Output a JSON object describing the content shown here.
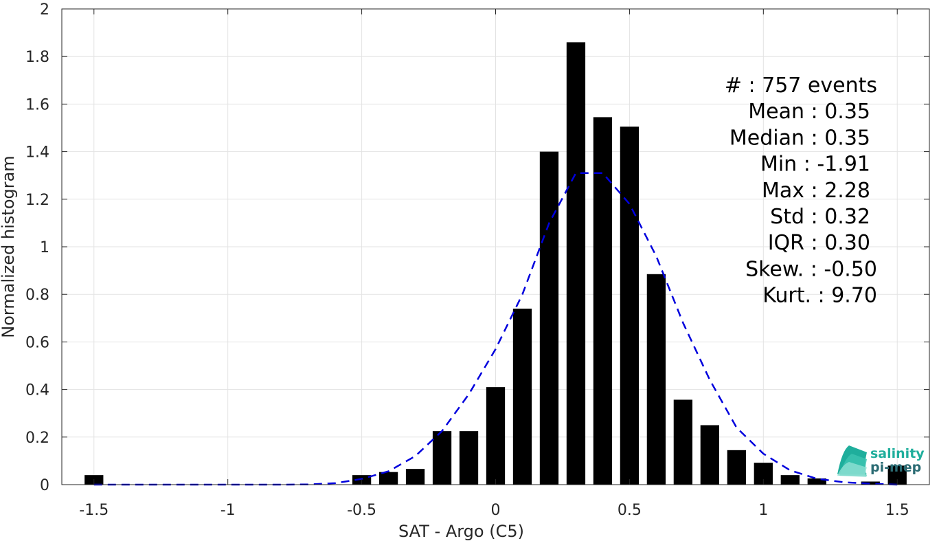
{
  "chart_data": {
    "type": "bar",
    "xlabel": "SAT - Argo (C5)",
    "ylabel": "Normalized histogram",
    "xlim": [
      -1.62,
      1.62
    ],
    "ylim": [
      0,
      2
    ],
    "grid": true,
    "x_ticks": [
      -1.5,
      -1,
      -0.5,
      0,
      0.5,
      1,
      1.5
    ],
    "x_tick_labels": [
      "-1.5",
      "-1",
      "-0.5",
      "0",
      "0.5",
      "1",
      "1.5"
    ],
    "y_ticks": [
      0,
      0.2,
      0.4,
      0.6,
      0.8,
      1,
      1.2,
      1.4,
      1.6,
      1.8,
      2
    ],
    "y_tick_labels": [
      "0",
      "0.2",
      "0.4",
      "0.6",
      "0.8",
      "1",
      "1.2",
      "1.4",
      "1.6",
      "1.8",
      "2"
    ],
    "bin_width": 0.1,
    "bar_width": 0.07,
    "bar_color": "#000000",
    "x": [
      -1.5,
      -0.5,
      -0.4,
      -0.3,
      -0.2,
      -0.1,
      0,
      0.1,
      0.2,
      0.3,
      0.4,
      0.5,
      0.6,
      0.7,
      0.8,
      0.9,
      1.0,
      1.1,
      1.2,
      1.4,
      1.5
    ],
    "values": [
      0.04,
      0.04,
      0.053,
      0.066,
      0.225,
      0.225,
      0.41,
      0.74,
      1.4,
      1.86,
      1.545,
      1.505,
      0.885,
      0.357,
      0.25,
      0.145,
      0.092,
      0.04,
      0.026,
      0.013,
      0.08
    ],
    "fit_curve": {
      "style": "dashed",
      "color": "#0000dd",
      "x": [
        -1.5,
        -1.4,
        -1.3,
        -1.2,
        -1.1,
        -1.0,
        -0.9,
        -0.8,
        -0.7,
        -0.6,
        -0.5,
        -0.4,
        -0.3,
        -0.2,
        -0.1,
        0.0,
        0.1,
        0.2,
        0.3,
        0.4,
        0.5,
        0.6,
        0.7,
        0.8,
        0.9,
        1.0,
        1.1,
        1.2,
        1.3,
        1.4,
        1.5
      ],
      "y": [
        0,
        0,
        0,
        0,
        0,
        0,
        0,
        0,
        0.001,
        0.006,
        0.024,
        0.056,
        0.12,
        0.225,
        0.38,
        0.57,
        0.8,
        1.1,
        1.31,
        1.31,
        1.18,
        0.96,
        0.68,
        0.44,
        0.24,
        0.13,
        0.06,
        0.025,
        0.01,
        0.004,
        0.0
      ]
    },
    "stats": [
      {
        "label": "#  : 757 events"
      },
      {
        "label": "Mean : 0.35"
      },
      {
        "label": "Median : 0.35"
      },
      {
        "label": "Min : -1.91"
      },
      {
        "label": "Max : 2.28"
      },
      {
        "label": "Std : 0.32"
      },
      {
        "label": "IQR : 0.30"
      },
      {
        "label": "Skew. : -0.50"
      },
      {
        "label": "Kurt. : 9.70"
      }
    ]
  },
  "logo": {
    "line1": "salinity",
    "line2": "pi-mep",
    "color1": "#1fae9c",
    "color2": "#2a6b73"
  }
}
